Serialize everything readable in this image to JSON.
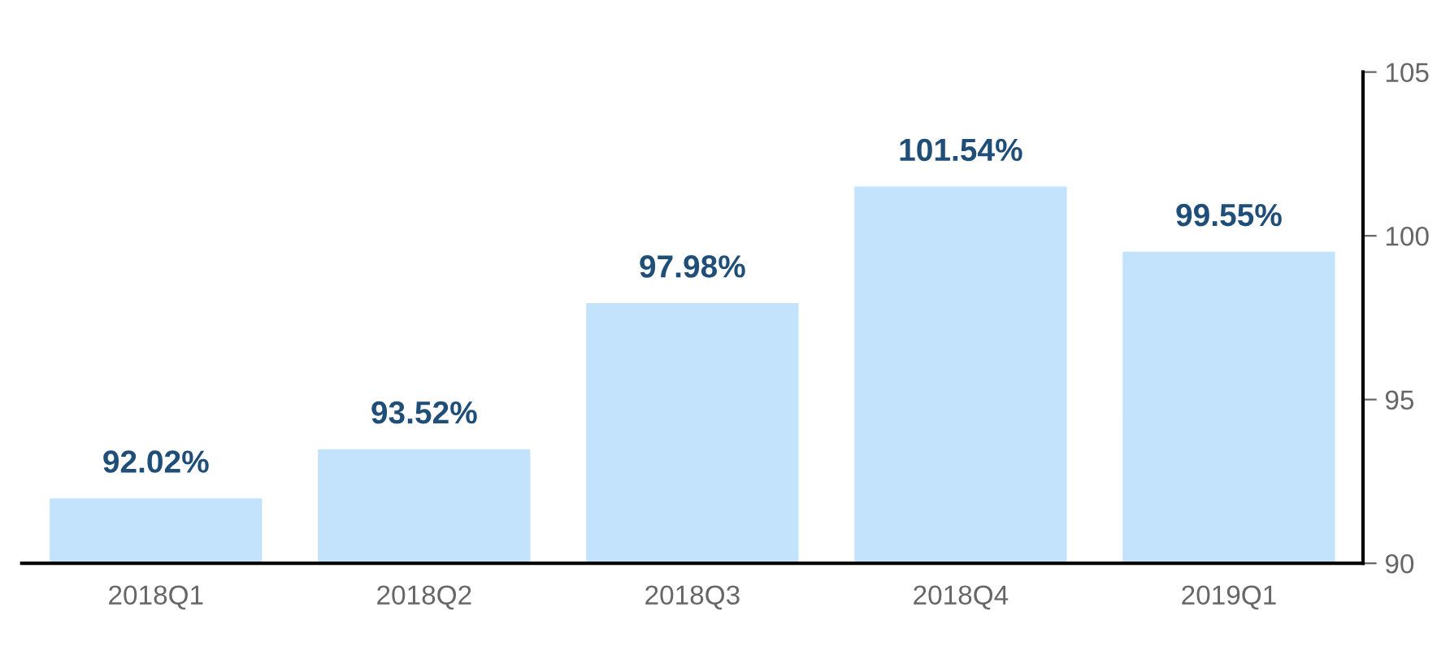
{
  "chart_data": {
    "type": "bar",
    "categories": [
      "2018Q1",
      "2018Q2",
      "2018Q3",
      "2018Q4",
      "2019Q1"
    ],
    "series": [
      {
        "color": "#c2e3fb",
        "values": [
          92.02,
          93.52,
          97.98,
          101.54,
          99.55
        ],
        "axis": "y2",
        "value_labels": [
          "92.02%",
          "93.52%",
          "97.98%",
          "101.54%",
          "99.55%"
        ]
      }
    ],
    "y2lim": [
      90,
      105
    ],
    "y2ticks": [
      90,
      95,
      100,
      105
    ],
    "grid": false,
    "legend": false
  }
}
